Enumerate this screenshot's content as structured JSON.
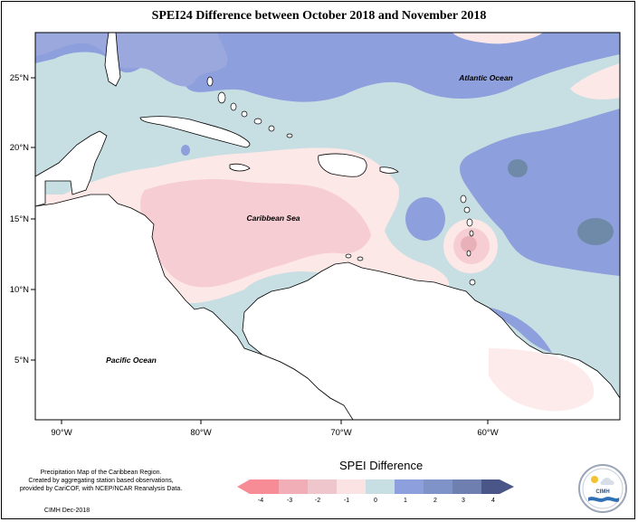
{
  "title": "SPEI24 Difference between October 2018 and November 2018",
  "map": {
    "x_ticks": [
      "90°W",
      "80°W",
      "70°W",
      "60°W"
    ],
    "y_ticks": [
      "25°N",
      "20°N",
      "15°N",
      "10°N",
      "5°N"
    ],
    "labels": {
      "atlantic": "Atlantic Ocean",
      "caribbean": "Caribbean Sea",
      "pacific": "Pacific Ocean"
    },
    "colors": {
      "light_blue": "#c7dfe3",
      "medium_blue": "#8d9fdc",
      "dark_blue": "#6f8aa8",
      "light_pink": "#fde8e8",
      "pink": "#f7cdd4",
      "dark_pink": "#e8b0b8",
      "land": "#ffffff"
    }
  },
  "footer": {
    "description_line1": "Precipitation Map of the Caribbean Region.",
    "description_line2": "Created by aggregating station based observations,",
    "description_line3": "provided by CariCOF, with NCEP/NCAR Reanalysis Data.",
    "credit": "CIMH Dec-2018"
  },
  "legend": {
    "title": "SPEI Difference",
    "ticks": [
      "-4",
      "-3",
      "-2",
      "-1",
      "0",
      "1",
      "2",
      "3",
      "4"
    ],
    "colors": [
      "#f78c96",
      "#f2aeb6",
      "#efc6cc",
      "#fbe3e3",
      "#c7dfe3",
      "#8d9fdc",
      "#7f93c8",
      "#6f7fb0",
      "#4a5687"
    ]
  },
  "logo": {
    "text": "CIMH",
    "icon": "cimh-logo-icon"
  }
}
